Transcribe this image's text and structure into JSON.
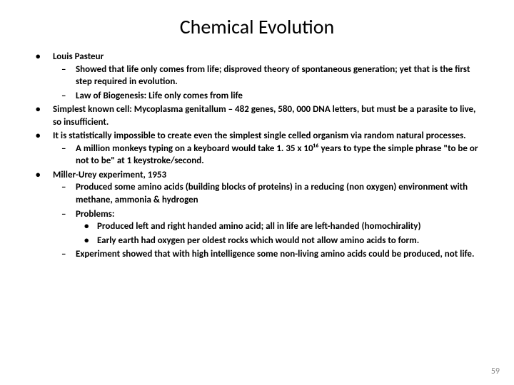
{
  "title": "Chemical Evolution",
  "bullets": [
    {
      "text": "Louis Pasteur",
      "children": [
        {
          "text": "Showed that life only comes from life; disproved theory of spontaneous generation; yet that is the first step required in evolution."
        },
        {
          "text": "Law of Biogenesis:  Life only comes from life"
        }
      ]
    },
    {
      "text": "Simplest known cell:  Mycoplasma genitallum – 482 genes, 580, 000 DNA letters, but must be a parasite to live, so insufficient."
    },
    {
      "text": "It is statistically impossible to create even the simplest single celled organism via random natural processes.",
      "children": [
        {
          "text": "A million monkeys typing on a keyboard would take 1. 35 x 10¹⁶ years to type the simple phrase \"to be or not to be\" at 1 keystroke/second."
        }
      ]
    },
    {
      "text": "Miller-Urey experiment, 1953",
      "children": [
        {
          "text": "Produced some amino acids (building blocks of proteins) in a reducing (non oxygen) environment with methane, ammonia & hydrogen"
        },
        {
          "text": "Problems:",
          "children": [
            {
              "text": "Produced left and right handed amino acid; all in life are left-handed (homochirality)"
            },
            {
              "text": "Early earth had oxygen per oldest rocks which would not allow amino acids to form."
            }
          ]
        },
        {
          "text": "Experiment showed that with high intelligence some non-living amino acids could be produced, not life."
        }
      ]
    }
  ],
  "page_number": "59",
  "colors": {
    "background": "#ffffff",
    "text": "#000000",
    "page_number": "#888888"
  },
  "fonts": {
    "title_size": 28,
    "body_size": 13,
    "body_weight": "bold"
  }
}
